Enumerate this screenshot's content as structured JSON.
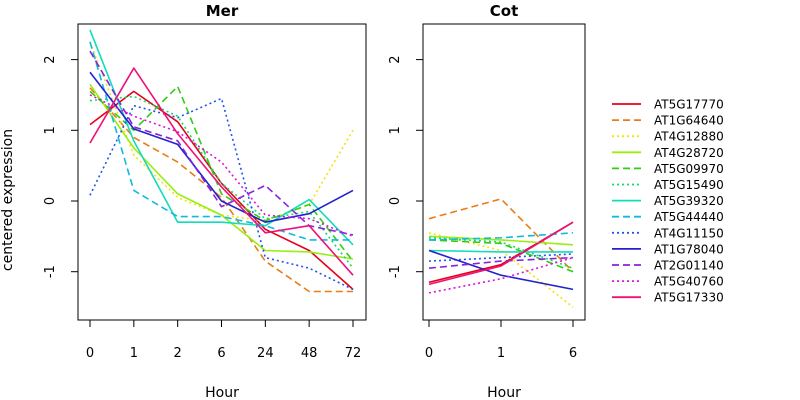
{
  "chart_data": [
    {
      "type": "line",
      "title": "Mer",
      "xlabel": "Hour",
      "ylabel": "centered expression",
      "categories": [
        "0",
        "1",
        "2",
        "6",
        "24",
        "48",
        "72"
      ],
      "yticks": [
        "-1",
        "0",
        "1",
        "2"
      ],
      "ylim": [
        -1.65,
        2.5
      ],
      "series": [
        {
          "name": "AT5G17770",
          "values": [
            1.08,
            1.55,
            1.12,
            0.25,
            -0.4,
            -0.7,
            -1.25
          ]
        },
        {
          "name": "AT1G64640",
          "values": [
            1.6,
            0.9,
            0.55,
            0.05,
            -0.85,
            -1.28,
            -1.28
          ]
        },
        {
          "name": "AT4G12880",
          "values": [
            2.25,
            0.65,
            0.05,
            -0.2,
            -0.28,
            -0.05,
            1.0
          ]
        },
        {
          "name": "AT4G28720",
          "values": [
            1.65,
            0.75,
            0.1,
            -0.2,
            -0.7,
            -0.72,
            -0.82
          ]
        },
        {
          "name": "AT5G09970",
          "values": [
            1.55,
            1.0,
            1.62,
            0.1,
            -0.28,
            -0.05,
            -0.85
          ]
        },
        {
          "name": "AT5G15490",
          "values": [
            1.42,
            1.48,
            1.2,
            0.25,
            -0.25,
            -0.15,
            -0.95
          ]
        },
        {
          "name": "AT5G39320",
          "values": [
            2.42,
            0.85,
            -0.3,
            -0.3,
            -0.35,
            0.02,
            -0.62
          ]
        },
        {
          "name": "AT5G44440",
          "values": [
            2.25,
            0.15,
            -0.22,
            -0.22,
            -0.35,
            -0.55,
            -0.55
          ]
        },
        {
          "name": "AT4G11150",
          "values": [
            0.08,
            1.35,
            1.18,
            1.45,
            -0.8,
            -0.95,
            -1.25
          ]
        },
        {
          "name": "AT1G78040",
          "values": [
            1.82,
            1.02,
            0.8,
            0.0,
            -0.3,
            -0.18,
            0.15
          ]
        },
        {
          "name": "AT2G01140",
          "values": [
            2.12,
            1.05,
            0.85,
            -0.08,
            0.22,
            -0.35,
            -0.48
          ]
        },
        {
          "name": "AT5G40760",
          "values": [
            1.5,
            1.2,
            0.98,
            0.55,
            -0.2,
            -0.25,
            -0.5
          ]
        },
        {
          "name": "AT5G17330",
          "values": [
            0.82,
            1.88,
            0.95,
            0.2,
            -0.45,
            -0.35,
            -1.05
          ]
        }
      ]
    },
    {
      "type": "line",
      "title": "Cot",
      "xlabel": "Hour",
      "categories": [
        "0",
        "1",
        "6"
      ],
      "yticks": [
        "-1",
        "0",
        "1",
        "2"
      ],
      "ylim": [
        -1.65,
        2.5
      ],
      "series": [
        {
          "name": "AT5G17770",
          "values": [
            -1.15,
            -0.9,
            -0.3
          ]
        },
        {
          "name": "AT1G64640",
          "values": [
            -0.25,
            0.03,
            -1.0
          ]
        },
        {
          "name": "AT4G12880",
          "values": [
            -0.45,
            -0.7,
            -1.5
          ]
        },
        {
          "name": "AT4G28720",
          "values": [
            -0.5,
            -0.55,
            -0.62
          ]
        },
        {
          "name": "AT5G09970",
          "values": [
            -0.55,
            -0.6,
            -1.0
          ]
        },
        {
          "name": "AT5G15490",
          "values": [
            -0.52,
            -0.58,
            -0.95
          ]
        },
        {
          "name": "AT5G39320",
          "values": [
            -0.7,
            -0.72,
            -0.72
          ]
        },
        {
          "name": "AT5G44440",
          "values": [
            -0.55,
            -0.52,
            -0.45
          ]
        },
        {
          "name": "AT4G11150",
          "values": [
            -0.85,
            -0.8,
            -0.75
          ]
        },
        {
          "name": "AT1G78040",
          "values": [
            -0.7,
            -1.05,
            -1.25
          ]
        },
        {
          "name": "AT2G01140",
          "values": [
            -0.95,
            -0.85,
            -0.8
          ]
        },
        {
          "name": "AT5G40760",
          "values": [
            -1.3,
            -1.1,
            -0.8
          ]
        },
        {
          "name": "AT5G17330",
          "values": [
            -1.18,
            -0.92,
            -0.3
          ]
        }
      ]
    }
  ],
  "legend": {
    "placement": "right",
    "entries": [
      {
        "name": "AT5G17770",
        "color": "#e6001a",
        "dash": "solid"
      },
      {
        "name": "AT1G64640",
        "color": "#ea7d17",
        "dash": "dashed"
      },
      {
        "name": "AT4G12880",
        "color": "#f6e00d",
        "dash": "dotted"
      },
      {
        "name": "AT4G28720",
        "color": "#99ee11",
        "dash": "solid"
      },
      {
        "name": "AT5G09970",
        "color": "#33cc11",
        "dash": "dashed"
      },
      {
        "name": "AT5G15490",
        "color": "#11dd66",
        "dash": "dotted"
      },
      {
        "name": "AT5G39320",
        "color": "#11ddbb",
        "dash": "solid"
      },
      {
        "name": "AT5G44440",
        "color": "#11bbdd",
        "dash": "dashed"
      },
      {
        "name": "AT4G11150",
        "color": "#2255ee",
        "dash": "dotted"
      },
      {
        "name": "AT1G78040",
        "color": "#2222cc",
        "dash": "solid"
      },
      {
        "name": "AT2G01140",
        "color": "#8822dd",
        "dash": "dashed"
      },
      {
        "name": "AT5G40760",
        "color": "#dd11dd",
        "dash": "dotted"
      },
      {
        "name": "AT5G17330",
        "color": "#ee1177",
        "dash": "solid"
      }
    ]
  }
}
